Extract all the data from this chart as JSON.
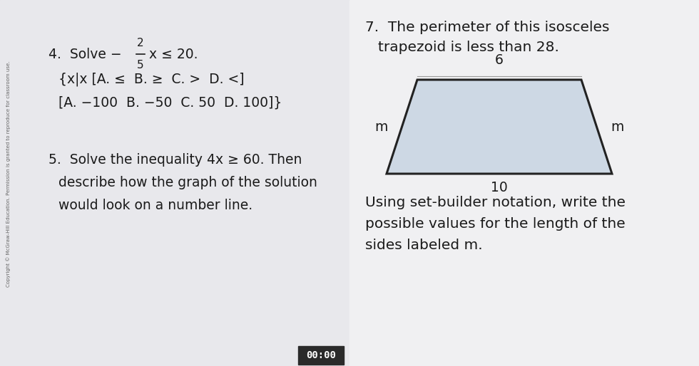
{
  "bg_overall": "#a0a0a8",
  "bg_left": "#e8e8ec",
  "bg_right": "#f0f0f2",
  "divider_color": "#888890",
  "left_panel": {
    "q4_line1_prefix": "4.  Solve −",
    "q4_frac_num": "2",
    "q4_frac_den": "5",
    "q4_line1_suffix": "x ≤ 20.",
    "q4_line2": "{x|x [A. ≤  B. ≥  C. >  D. <]",
    "q4_line3": "[A. −100  B. −50  C. 50  D. 100]}",
    "q5_line1": "5.  Solve the inequality 4x ≥ 60. Then",
    "q5_line2": "describe how the graph of the solution",
    "q5_line3": "would look on a number line.",
    "sidebar_text": "Copyright © McGraw-Hill Education. Permission is granted to reproduce for classroom use."
  },
  "right_panel": {
    "q7_line1": "7.  The perimeter of this isosceles",
    "q7_line2": "trapezoid is less than 28.",
    "trap_color": "#cdd8e4",
    "trap_line_color": "#222222",
    "trap_lw": 2.2,
    "trap_top_label": "6",
    "trap_bottom_label": "10",
    "trap_side_label": "m",
    "q7_bottom_line1": "Using set-builder notation, write the",
    "q7_bottom_line2": "possible values for the length of the",
    "q7_bottom_line3": "sides labeled m.",
    "timer_text": "00:00",
    "timer_bg": "#2a2a2a",
    "timer_fg": "#ffffff"
  },
  "text_color": "#1a1a1a",
  "font_size": 13.5
}
